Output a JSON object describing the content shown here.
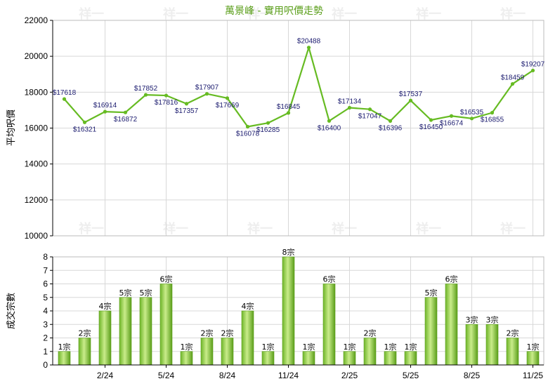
{
  "title": "萬景峰 - 實用呎價走勢",
  "watermark": "祥一",
  "colors": {
    "line": "#66bb22",
    "bar_light": "#c9ec8a",
    "bar_dark": "#5a9e1a",
    "grid": "#d8d8d8",
    "title": "#5a9e1a",
    "label": "#1a1a6e"
  },
  "chart_data": [
    {
      "type": "line",
      "ylabel": "平均呎價",
      "ylim": [
        10000,
        22000
      ],
      "yticks": [
        10000,
        12000,
        14000,
        16000,
        18000,
        20000,
        22000
      ],
      "value_prefix": "$",
      "grid": true,
      "values": [
        17618,
        16321,
        16914,
        16872,
        17852,
        17816,
        17357,
        17907,
        17669,
        16078,
        16285,
        16845,
        20488,
        16400,
        17134,
        17047,
        16396,
        17537,
        16450,
        16674,
        16535,
        16855,
        18459,
        19207
      ]
    },
    {
      "type": "bar",
      "ylabel": "成交宗數",
      "ylim": [
        0,
        8
      ],
      "yticks": [
        0,
        1,
        2,
        3,
        4,
        5,
        6,
        7,
        8
      ],
      "label_suffix": "宗",
      "grid": true,
      "values": [
        1,
        2,
        4,
        5,
        5,
        6,
        1,
        2,
        2,
        4,
        1,
        8,
        1,
        6,
        1,
        2,
        1,
        1,
        5,
        6,
        3,
        3,
        2,
        1
      ],
      "x_ticks": [
        {
          "index": 2,
          "label": "2/24"
        },
        {
          "index": 5,
          "label": "5/24"
        },
        {
          "index": 8,
          "label": "8/24"
        },
        {
          "index": 11,
          "label": "11/24"
        },
        {
          "index": 14,
          "label": "2/25"
        },
        {
          "index": 17,
          "label": "5/25"
        },
        {
          "index": 20,
          "label": "8/25"
        },
        {
          "index": 23,
          "label": "11/25"
        }
      ]
    }
  ]
}
